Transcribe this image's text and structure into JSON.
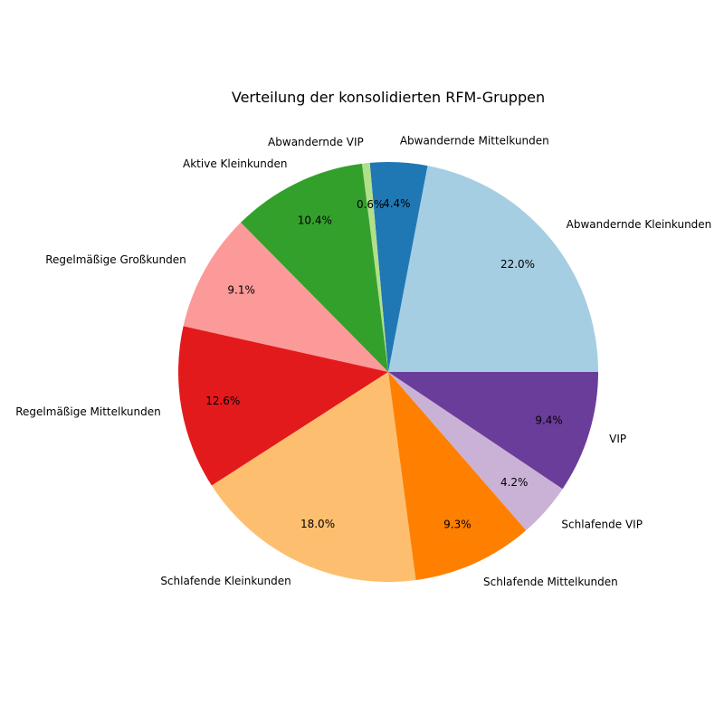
{
  "chart_data": {
    "type": "pie",
    "title": "Verteilung der konsolidierten RFM-Gruppen",
    "start_angle_deg": 0,
    "direction": "counterclockwise",
    "slices": [
      {
        "label": "Abwandernde Kleinkunden",
        "value": 22.0,
        "pct_label": "22.0%",
        "color": "#a6cee3"
      },
      {
        "label": "Abwandernde Mittelkunden",
        "value": 4.4,
        "pct_label": "4.4%",
        "color": "#1f78b4"
      },
      {
        "label": "Abwandernde VIP",
        "value": 0.6,
        "pct_label": "0.6%",
        "color": "#b2df8a"
      },
      {
        "label": "Aktive Kleinkunden",
        "value": 10.4,
        "pct_label": "10.4%",
        "color": "#33a02c"
      },
      {
        "label": "Regelmäßige Großkunden",
        "value": 9.1,
        "pct_label": "9.1%",
        "color": "#fb9a99"
      },
      {
        "label": "Regelmäßige Mittelkunden",
        "value": 12.6,
        "pct_label": "12.6%",
        "color": "#e31a1c"
      },
      {
        "label": "Schlafende Kleinkunden",
        "value": 18.0,
        "pct_label": "18.0%",
        "color": "#fdbf6f"
      },
      {
        "label": "Schlafende Mittelkunden",
        "value": 9.3,
        "pct_label": "9.3%",
        "color": "#ff7f00"
      },
      {
        "label": "Schlafende VIP",
        "value": 4.2,
        "pct_label": "4.2%",
        "color": "#cab2d6"
      },
      {
        "label": "VIP",
        "value": 9.4,
        "pct_label": "9.4%",
        "color": "#6a3d9a"
      }
    ]
  }
}
